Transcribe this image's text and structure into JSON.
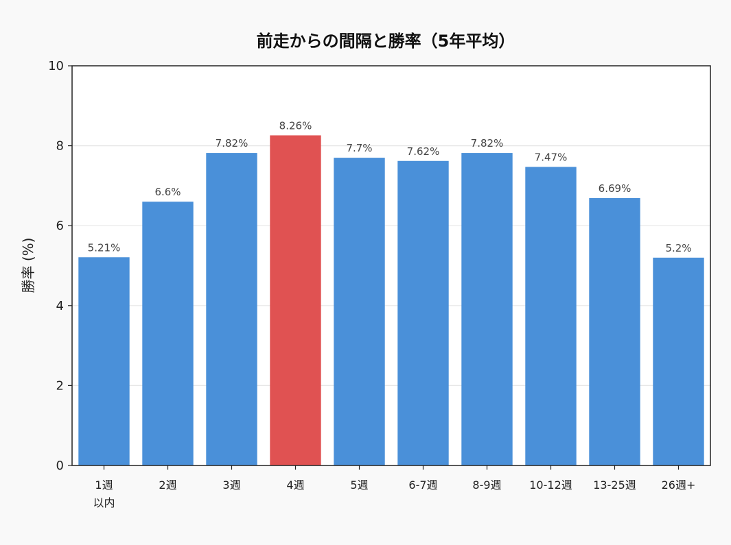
{
  "chart_data": {
    "type": "bar",
    "title": "前走からの間隔と勝率（5年平均）",
    "xlabel": "",
    "ylabel": "勝率 (%)",
    "ylim": [
      0,
      10
    ],
    "yticks": [
      0,
      2,
      4,
      6,
      8,
      10
    ],
    "grid": "y",
    "categories": [
      [
        "1週",
        "以内"
      ],
      [
        "2週"
      ],
      [
        "3週"
      ],
      [
        "4週"
      ],
      [
        "5週"
      ],
      [
        "6-7週"
      ],
      [
        "8-9週"
      ],
      [
        "10-12週"
      ],
      [
        "13-25週"
      ],
      [
        "26週+"
      ]
    ],
    "values": [
      5.21,
      6.6,
      7.82,
      8.26,
      7.7,
      7.62,
      7.82,
      7.47,
      6.69,
      5.2
    ],
    "value_labels": [
      "5.21%",
      "6.6%",
      "7.82%",
      "8.26%",
      "7.7%",
      "7.62%",
      "7.82%",
      "7.47%",
      "6.69%",
      "5.2%"
    ],
    "highlight_index": 3,
    "colors": {
      "bar": "#4a90d9",
      "highlight": "#e05252",
      "grid": "#e6e6e6",
      "axis": "#222222",
      "plot_background": "#ffffff",
      "page_background": "#f9f9f9"
    }
  }
}
